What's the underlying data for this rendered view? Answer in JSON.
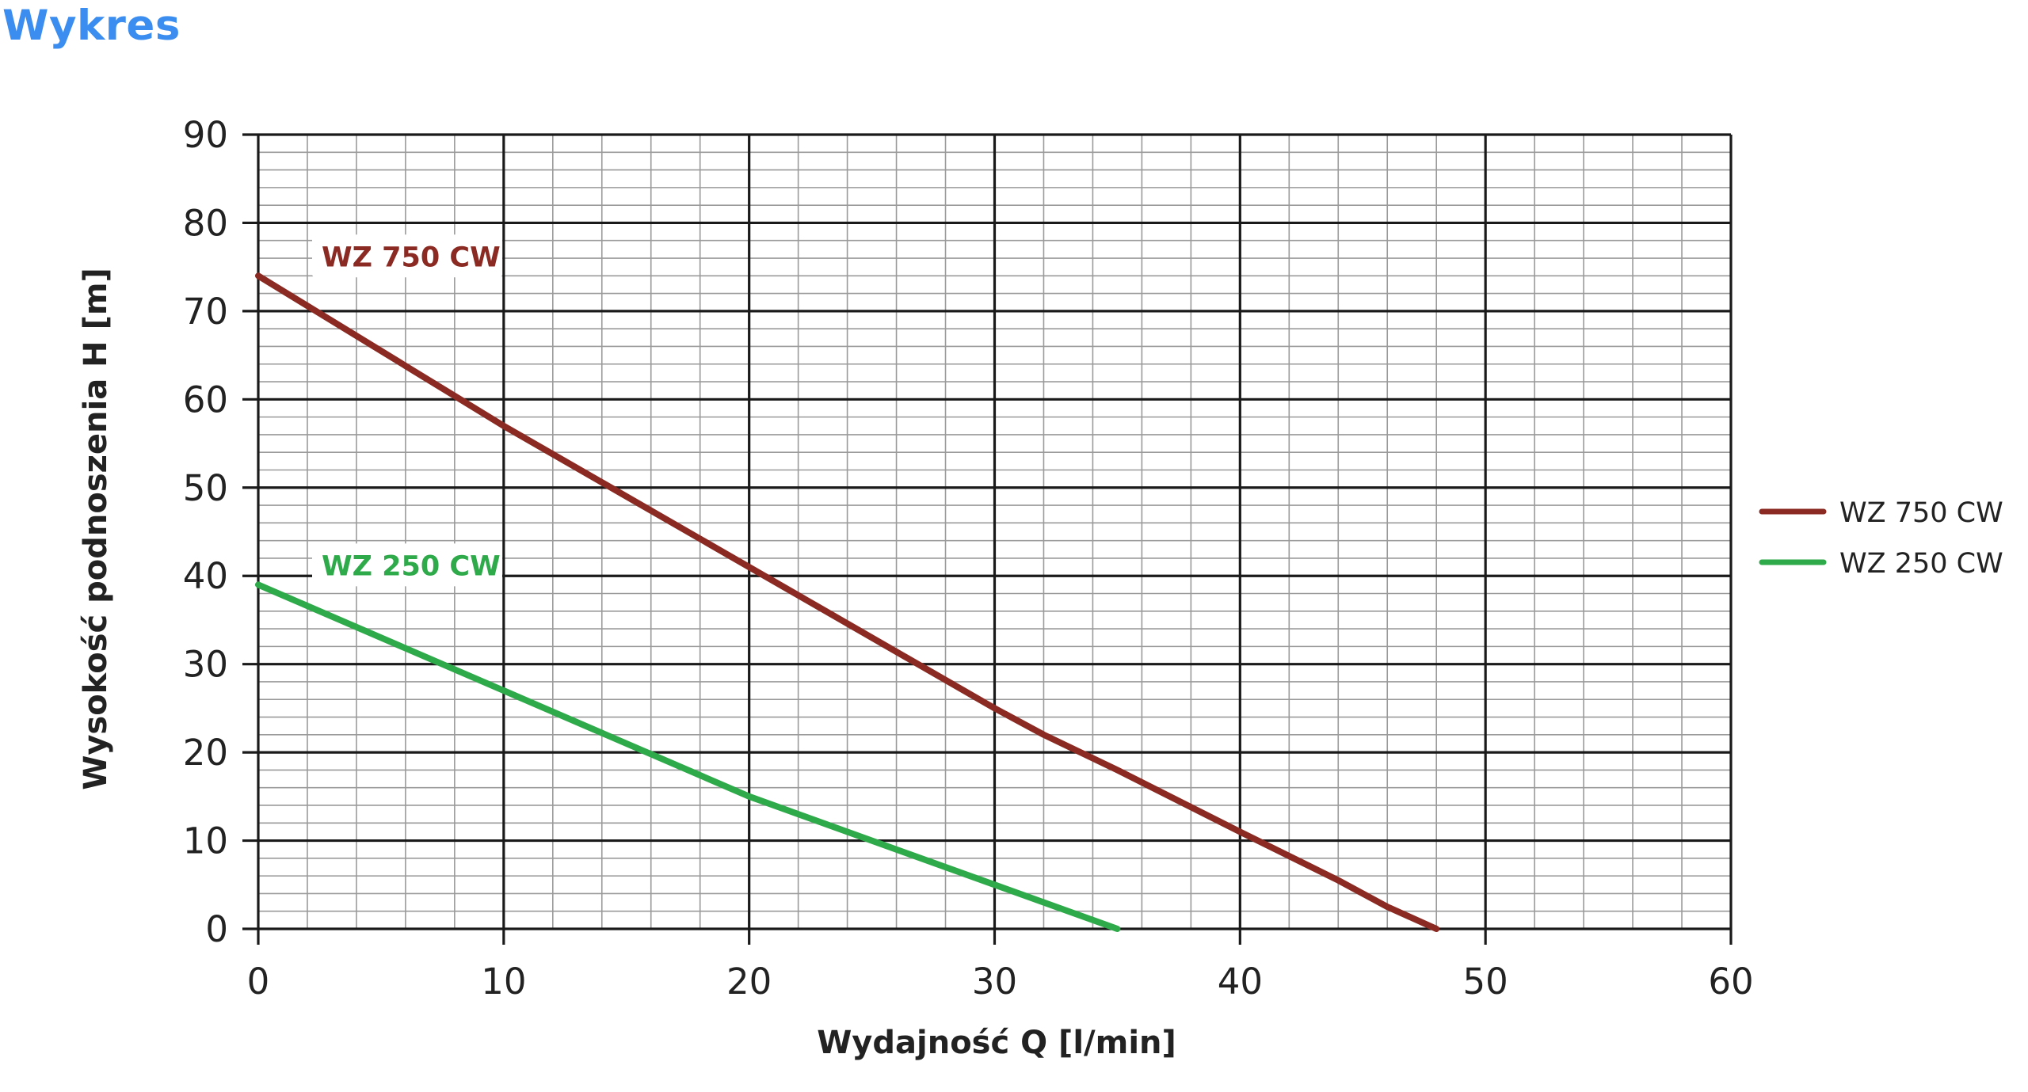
{
  "page": {
    "title": "Wykres"
  },
  "colors": {
    "title": "#3b8ef0",
    "major_grid": "#1a1a1a",
    "minor_grid": "#9a9a9a"
  },
  "chart_data": {
    "type": "line",
    "xlabel": "Wydajność Q [l/min]",
    "ylabel": "Wysokość podnoszenia H [m]",
    "xlim": [
      0,
      60
    ],
    "ylim": [
      0,
      90
    ],
    "x_ticks": [
      0,
      10,
      20,
      30,
      40,
      50,
      60
    ],
    "y_ticks": [
      0,
      10,
      20,
      30,
      40,
      50,
      60,
      70,
      80,
      90
    ],
    "x_tick_labels": [
      "0",
      "10",
      "20",
      "30",
      "40",
      "50",
      "60"
    ],
    "y_tick_labels": [
      "0",
      "10",
      "20",
      "30",
      "40",
      "50",
      "60",
      "70",
      "80",
      "90"
    ],
    "grid": true,
    "legend_position": "right",
    "series": [
      {
        "name": "WZ 750 CW",
        "color": "#8b2a22",
        "x": [
          0,
          10,
          20,
          30,
          32,
          35,
          40,
          44,
          46,
          48
        ],
        "y": [
          74,
          57,
          41,
          25,
          22,
          18,
          11,
          5.5,
          2.5,
          0
        ]
      },
      {
        "name": "WZ 250 CW",
        "color": "#2eaa4a",
        "x": [
          0,
          10,
          20,
          25,
          30,
          35
        ],
        "y": [
          39,
          27,
          15,
          10,
          5,
          0
        ]
      }
    ]
  }
}
